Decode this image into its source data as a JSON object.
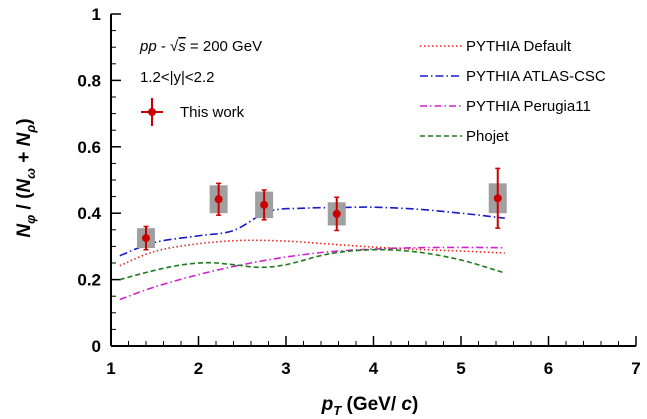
{
  "chart_data": {
    "type": "scatter",
    "xlabel": {
      "prefix": "p",
      "sub": "T",
      "suffix": " (GeV/ ",
      "unit_italic": "c",
      "close": ")"
    },
    "ylabel": {
      "n": "N",
      "s1": "φ",
      "mid1": " / (",
      "s2": "ω",
      "mid2": " + ",
      "s3": "ρ",
      "close": ")"
    },
    "xlim": [
      1,
      7
    ],
    "ylim": [
      0,
      1
    ],
    "x_ticks": [
      1,
      2,
      3,
      4,
      5,
      6,
      7
    ],
    "x_tick_labels": [
      "1",
      "2",
      "3",
      "4",
      "5",
      "6",
      "7"
    ],
    "y_ticks": [
      0,
      0.2,
      0.4,
      0.6,
      0.8,
      1.0
    ],
    "y_tick_labels": [
      "0",
      "0.2",
      "0.4",
      "0.6",
      "0.8",
      "1"
    ],
    "annotations": [
      {
        "id": "system",
        "parts": [
          "pp",
          " - ",
          "√",
          "s",
          " = 200 GeV"
        ]
      },
      {
        "id": "rapidity",
        "text": "1.2<|y|<2.2"
      }
    ],
    "data_series": {
      "name": "This work",
      "color": "#cc0000",
      "sys_color": "#a0a0a0",
      "points": [
        {
          "x": 1.4,
          "y": 0.325,
          "stat": 0.035,
          "sys": 0.03
        },
        {
          "x": 2.23,
          "y": 0.442,
          "stat": 0.048,
          "sys": 0.042
        },
        {
          "x": 2.75,
          "y": 0.425,
          "stat": 0.045,
          "sys": 0.04
        },
        {
          "x": 3.58,
          "y": 0.398,
          "stat": 0.05,
          "sys": 0.035
        },
        {
          "x": 5.42,
          "y": 0.445,
          "stat": 0.09,
          "sys": 0.045
        }
      ]
    },
    "model_series": [
      {
        "name": "PYTHIA Default",
        "color": "#e0241e",
        "dash": "1.5,2.5",
        "x": [
          1.1,
          1.5,
          2.0,
          2.5,
          3.0,
          3.5,
          4.0,
          4.5,
          5.0,
          5.5
        ],
        "y": [
          0.242,
          0.285,
          0.308,
          0.318,
          0.316,
          0.307,
          0.298,
          0.291,
          0.286,
          0.28
        ]
      },
      {
        "name": "PYTHIA ATLAS-CSC",
        "color": "#1a1ac8",
        "dash": "8,3,1.5,3",
        "x": [
          1.1,
          1.5,
          2.0,
          2.4,
          2.8,
          3.2,
          3.6,
          4.0,
          4.5,
          5.0,
          5.5
        ],
        "y": [
          0.272,
          0.312,
          0.332,
          0.348,
          0.405,
          0.415,
          0.417,
          0.418,
          0.412,
          0.4,
          0.385
        ]
      },
      {
        "name": "PYTHIA Perugia11",
        "color": "#d020d0",
        "dash": "7,3,1.5,3",
        "x": [
          1.1,
          1.5,
          2.0,
          2.5,
          3.0,
          3.5,
          4.0,
          4.5,
          5.0,
          5.5
        ],
        "y": [
          0.14,
          0.178,
          0.215,
          0.245,
          0.268,
          0.284,
          0.292,
          0.296,
          0.297,
          0.296
        ]
      },
      {
        "name": "Phojet",
        "color": "#1f7a1f",
        "dash": "5,3",
        "x": [
          1.1,
          1.5,
          1.8,
          2.1,
          2.4,
          2.7,
          3.0,
          3.5,
          4.0,
          4.5,
          5.0,
          5.5
        ],
        "y": [
          0.2,
          0.228,
          0.244,
          0.251,
          0.245,
          0.237,
          0.245,
          0.278,
          0.29,
          0.283,
          0.259,
          0.22
        ]
      }
    ],
    "legend_placement": "top-right",
    "grid": false
  }
}
